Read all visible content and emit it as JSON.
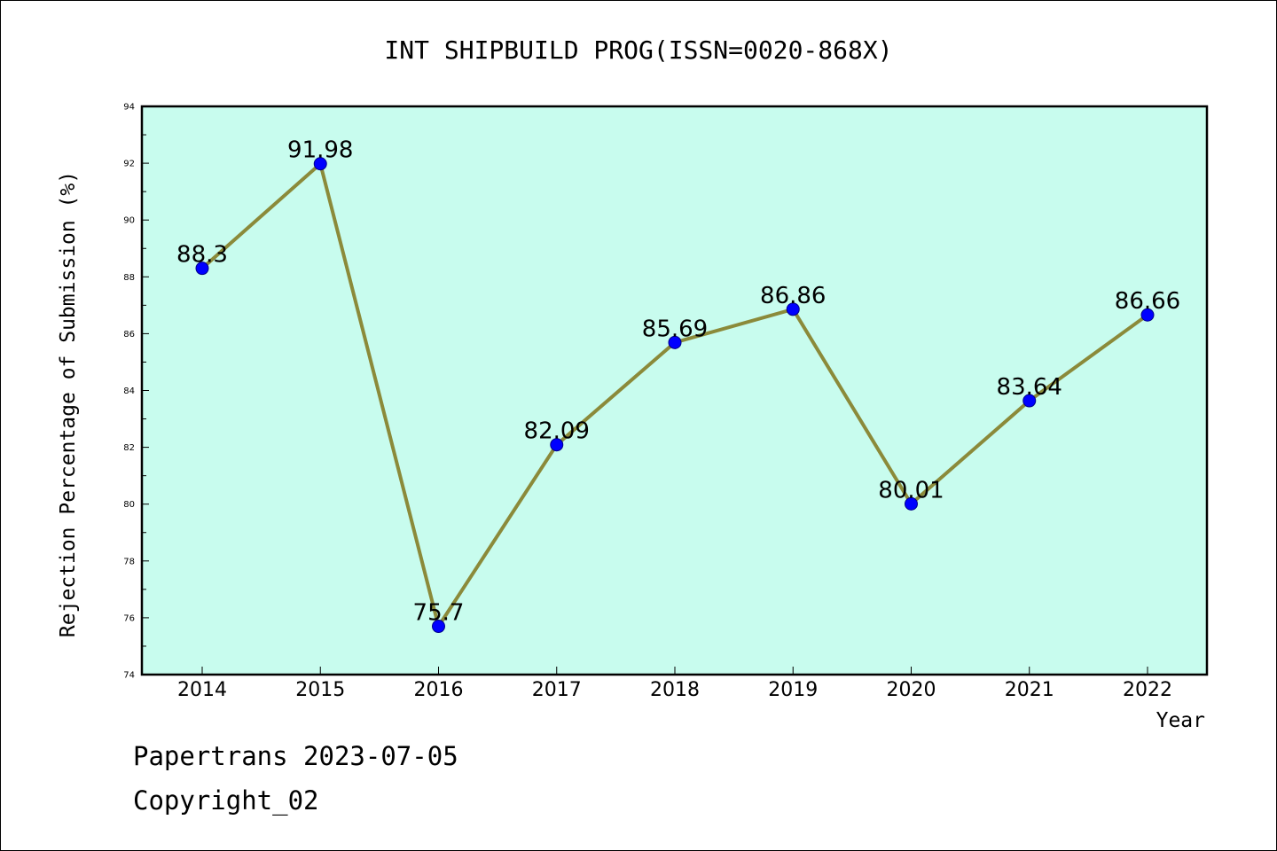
{
  "chart_data": {
    "type": "line",
    "title": "INT SHIPBUILD PROG(ISSN=0020-868X)",
    "xlabel": "Year",
    "ylabel": "Rejection Percentage of Submission (%)",
    "categories": [
      "2014",
      "2015",
      "2016",
      "2017",
      "2018",
      "2019",
      "2020",
      "2021",
      "2022"
    ],
    "series": [
      {
        "values": [
          88.3,
          91.98,
          75.7,
          82.09,
          85.69,
          86.86,
          80.01,
          83.64,
          86.66
        ],
        "labels": [
          "88.3",
          "91.98",
          "75.7",
          "82.09",
          "85.69",
          "86.86",
          "80.01",
          "83.64",
          "86.66"
        ]
      }
    ],
    "ylim": [
      74,
      94
    ],
    "yticks": [
      74,
      76,
      78,
      80,
      82,
      84,
      86,
      88,
      90,
      92,
      94
    ],
    "grid": false,
    "legend": "none",
    "colors": {
      "plot_background": "#c8fcee",
      "line": "#8b8a3a",
      "marker": "#0000ff",
      "marker_edge": "#00008b"
    }
  },
  "footer": {
    "line1": "Papertrans 2023-07-05",
    "line2": "Copyright_02"
  }
}
